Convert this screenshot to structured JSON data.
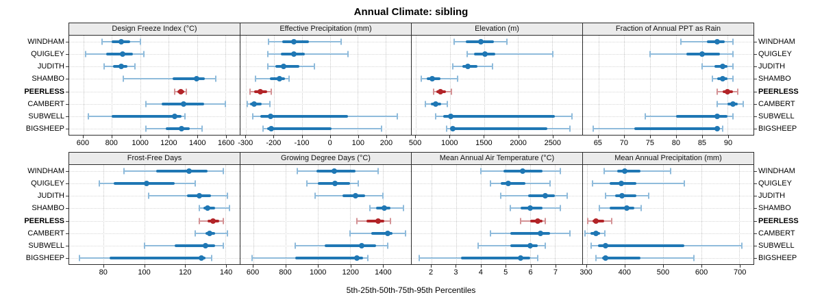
{
  "title": "Annual Climate: sibling",
  "caption": "5th-25th-50th-75th-95th Percentiles",
  "row_labels": [
    "WINDHAM",
    "QUIGLEY",
    "JUDITH",
    "SHAMBO",
    "PEERLESS",
    "CAMBERT",
    "SUBWELL",
    "BIGSHEEP"
  ],
  "highlight": "PEERLESS",
  "percentiles": [
    5,
    25,
    50,
    75,
    95
  ],
  "colors": {
    "series": "#1f77b4",
    "series_light": "#8fbbdb",
    "highlight": "#b22428",
    "highlight_light": "#d49295",
    "strip_bg": "#ebebeb",
    "border": "#2a2a2a",
    "grid": "#c8c8c8"
  },
  "chart_data": [
    {
      "type": "scatter",
      "style": "dot-with-percentile-intervals",
      "title": "Design Freeze Index (°C)",
      "xlim": [
        500,
        1700
      ],
      "ticks": [
        600,
        800,
        1000,
        1200,
        1400,
        1600
      ],
      "categories": [
        "WINDHAM",
        "QUIGLEY",
        "JUDITH",
        "SHAMBO",
        "PEERLESS",
        "CAMBERT",
        "SUBWELL",
        "BIGSHEEP"
      ],
      "values": [
        [
          730,
          800,
          865,
          930,
          1000
        ],
        [
          615,
          760,
          875,
          950,
          1025
        ],
        [
          745,
          810,
          865,
          910,
          965
        ],
        [
          880,
          1230,
          1395,
          1455,
          1530
        ],
        [
          1240,
          1260,
          1285,
          1310,
          1325
        ],
        [
          1040,
          1150,
          1305,
          1450,
          1600
        ],
        [
          635,
          800,
          1240,
          1290,
          1315
        ],
        [
          1040,
          1180,
          1290,
          1350,
          1435
        ]
      ]
    },
    {
      "type": "scatter",
      "style": "dot-with-percentile-intervals",
      "title": "Effective Precipitation (mm)",
      "xlim": [
        -320,
        290
      ],
      "ticks": [
        -300,
        -200,
        -100,
        0,
        100,
        200
      ],
      "categories": [
        "WINDHAM",
        "QUIGLEY",
        "JUDITH",
        "SHAMBO",
        "PEERLESS",
        "CAMBERT",
        "SUBWELL",
        "BIGSHEEP"
      ],
      "values": [
        [
          -220,
          -170,
          -130,
          -75,
          40
        ],
        [
          -222,
          -175,
          -130,
          -90,
          65
        ],
        [
          -222,
          -195,
          -165,
          -110,
          -55
        ],
        [
          -265,
          -215,
          -180,
          -160,
          -145
        ],
        [
          -285,
          -270,
          -248,
          -225,
          -210
        ],
        [
          -295,
          -285,
          -270,
          -245,
          -215
        ],
        [
          -275,
          -250,
          -213,
          65,
          240
        ],
        [
          -240,
          -225,
          -210,
          5,
          185
        ]
      ]
    },
    {
      "type": "scatter",
      "style": "dot-with-percentile-intervals",
      "title": "Elevation (m)",
      "xlim": [
        440,
        2940
      ],
      "ticks": [
        500,
        1000,
        1500,
        2000,
        2500
      ],
      "categories": [
        "WINDHAM",
        "QUIGLEY",
        "JUDITH",
        "SHAMBO",
        "PEERLESS",
        "CAMBERT",
        "SUBWELL",
        "BIGSHEEP"
      ],
      "values": [
        [
          1060,
          1230,
          1450,
          1640,
          1840
        ],
        [
          1250,
          1350,
          1510,
          1660,
          2510
        ],
        [
          1040,
          1180,
          1260,
          1400,
          1620
        ],
        [
          580,
          660,
          740,
          860,
          1110
        ],
        [
          760,
          800,
          860,
          940,
          1020
        ],
        [
          640,
          720,
          790,
          870,
          960
        ],
        [
          790,
          900,
          1010,
          2540,
          2790
        ],
        [
          950,
          1000,
          1040,
          2430,
          2760
        ]
      ]
    },
    {
      "type": "scatter",
      "style": "dot-with-percentile-intervals",
      "title": "Fraction of Annual PPT as Rain",
      "xlim": [
        62,
        95
      ],
      "ticks": [
        65,
        70,
        75,
        80,
        85,
        90
      ],
      "categories": [
        "WINDHAM",
        "QUIGLEY",
        "JUDITH",
        "SHAMBO",
        "PEERLESS",
        "CAMBERT",
        "SUBWELL",
        "BIGSHEEP"
      ],
      "values": [
        [
          81,
          86,
          88,
          89.5,
          91
        ],
        [
          75,
          82,
          85,
          88.5,
          91
        ],
        [
          85,
          87.5,
          89,
          90,
          91
        ],
        [
          87,
          88,
          89,
          90,
          91
        ],
        [
          88,
          89,
          90,
          91,
          92
        ],
        [
          88,
          90,
          91,
          92,
          93
        ],
        [
          74,
          80,
          88,
          90,
          91
        ],
        [
          64,
          72,
          88,
          88.5,
          89
        ]
      ]
    },
    {
      "type": "scatter",
      "style": "dot-with-percentile-intervals",
      "title": "Frost-Free Days",
      "xlim": [
        63,
        147
      ],
      "ticks": [
        80,
        100,
        120,
        140
      ],
      "categories": [
        "WINDHAM",
        "QUIGLEY",
        "JUDITH",
        "SHAMBO",
        "PEERLESS",
        "CAMBERT",
        "SUBWELL",
        "BIGSHEEP"
      ],
      "values": [
        [
          90,
          106,
          122,
          131,
          139
        ],
        [
          78,
          85,
          101,
          115,
          125
        ],
        [
          102,
          121,
          127,
          133,
          141
        ],
        [
          127,
          129,
          131,
          135,
          142
        ],
        [
          127,
          131,
          134,
          137,
          139
        ],
        [
          125,
          130,
          132,
          135,
          141
        ],
        [
          100,
          115,
          130,
          135,
          139
        ],
        [
          68,
          83,
          128,
          130,
          133
        ]
      ]
    },
    {
      "type": "scatter",
      "style": "dot-with-percentile-intervals",
      "title": "Growing Degree Days (°C)",
      "xlim": [
        520,
        1575
      ],
      "ticks": [
        600,
        800,
        1000,
        1200,
        1400
      ],
      "categories": [
        "WINDHAM",
        "QUIGLEY",
        "JUDITH",
        "SHAMBO",
        "PEERLESS",
        "CAMBERT",
        "SUBWELL",
        "BIGSHEEP"
      ],
      "values": [
        [
          870,
          990,
          1100,
          1230,
          1370
        ],
        [
          930,
          1000,
          1105,
          1200,
          1250
        ],
        [
          980,
          1150,
          1230,
          1290,
          1400
        ],
        [
          1320,
          1360,
          1410,
          1450,
          1530
        ],
        [
          1240,
          1300,
          1370,
          1410,
          1450
        ],
        [
          1200,
          1330,
          1430,
          1460,
          1540
        ],
        [
          860,
          1040,
          1270,
          1360,
          1430
        ],
        [
          590,
          860,
          1240,
          1280,
          1310
        ]
      ]
    },
    {
      "type": "scatter",
      "style": "dot-with-percentile-intervals",
      "title": "Mean Annual Air Temperature (°C)",
      "xlim": [
        1.2,
        8.1
      ],
      "ticks": [
        2,
        3,
        4,
        5,
        6,
        7
      ],
      "categories": [
        "WINDHAM",
        "QUIGLEY",
        "JUDITH",
        "SHAMBO",
        "PEERLESS",
        "CAMBERT",
        "SUBWELL",
        "BIGSHEEP"
      ],
      "values": [
        [
          4.0,
          4.9,
          5.7,
          6.5,
          7.2
        ],
        [
          4.4,
          4.8,
          5.1,
          5.8,
          6.8
        ],
        [
          4.8,
          5.9,
          6.6,
          7.0,
          7.5
        ],
        [
          5.2,
          5.6,
          6.0,
          6.5,
          7.2
        ],
        [
          5.6,
          6.0,
          6.3,
          6.5,
          6.6
        ],
        [
          4.4,
          5.2,
          6.4,
          6.8,
          7.6
        ],
        [
          3.9,
          5.2,
          6.0,
          6.3,
          6.6
        ],
        [
          1.5,
          3.2,
          5.6,
          6.0,
          6.3
        ]
      ]
    },
    {
      "type": "scatter",
      "style": "dot-with-percentile-intervals",
      "title": "Mean Annual Precipitation (mm)",
      "xlim": [
        290,
        737
      ],
      "ticks": [
        300,
        400,
        500,
        600,
        700
      ],
      "categories": [
        "WINDHAM",
        "QUIGLEY",
        "JUDITH",
        "SHAMBO",
        "PEERLESS",
        "CAMBERT",
        "SUBWELL",
        "BIGSHEEP"
      ],
      "values": [
        [
          345,
          380,
          400,
          440,
          520
        ],
        [
          315,
          360,
          390,
          430,
          555
        ],
        [
          350,
          375,
          393,
          430,
          462
        ],
        [
          333,
          360,
          405,
          425,
          443
        ],
        [
          303,
          315,
          325,
          345,
          365
        ],
        [
          295,
          310,
          325,
          335,
          348
        ],
        [
          312,
          330,
          350,
          555,
          707
        ],
        [
          325,
          340,
          350,
          440,
          580
        ]
      ]
    }
  ]
}
